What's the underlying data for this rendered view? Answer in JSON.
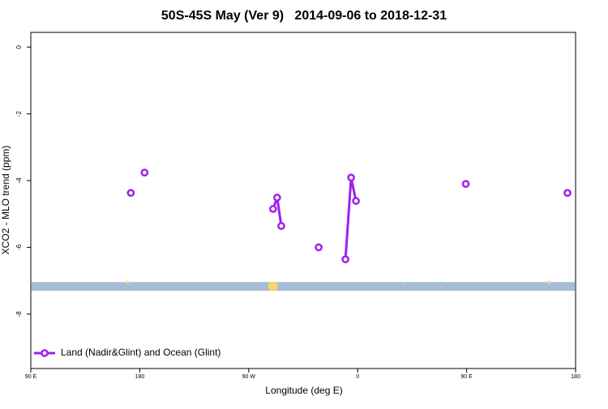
{
  "chart_data": {
    "type": "line",
    "title": "50S-45S May (Ver 9)   2014-09-06 to 2018-12-31",
    "x_label": "Longitude (deg E)",
    "y_label": "XCO2 - MLO trend (ppm)",
    "xlim": [
      90,
      540
    ],
    "xticks": [
      {
        "value": 90,
        "label": "90 E"
      },
      180,
      {
        "value": 270,
        "label": "90 W"
      },
      {
        "value": 360,
        "label": "0"
      },
      {
        "value": 450,
        "label": "90 E"
      },
      {
        "value": 540,
        "label": "180"
      }
    ],
    "ylim": [
      -9.63,
      0.44
    ],
    "yticks": [
      0,
      -2,
      -4,
      -6,
      -8
    ],
    "legend": "bottom-left",
    "band": {
      "ymin": -7.3,
      "ymax": -7.04,
      "color": "#a8bcd8"
    },
    "highlights": {
      "color": "#f5d76e",
      "x": [
        169.9,
        290.1,
        398.1,
        428.3,
        518.3
      ],
      "values": [
        -7.05,
        -7.17,
        -7.12,
        -7.18,
        -7.05
      ],
      "sizes": [
        2,
        6,
        1,
        1,
        2
      ]
    },
    "series": [
      {
        "name": "Land (Nadir&Glint) and Ocean (Glint)",
        "color": "#a020f0",
        "x": [
          172.6,
          null,
          184.0,
          null,
          290.1,
          293.5,
          296.9,
          null,
          327.8,
          null,
          349.9,
          354.6,
          358.6,
          null,
          449.3,
          null,
          533.3
        ],
        "values": [
          -4.37,
          null,
          -3.76,
          null,
          -4.85,
          -4.51,
          -5.36,
          null,
          -6.0,
          null,
          -6.36,
          -3.91,
          -4.61,
          null,
          -4.1,
          null,
          -4.37
        ]
      }
    ]
  }
}
